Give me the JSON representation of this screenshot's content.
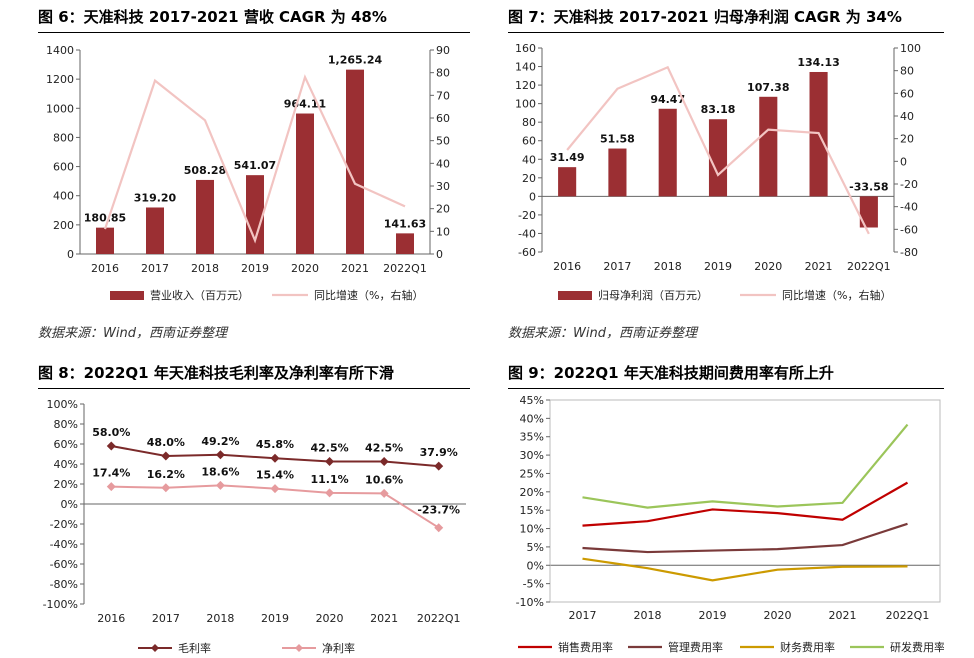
{
  "colors": {
    "bar": "#9b2f33",
    "pink_line": "#f2c4c2",
    "gross": "#7b2a2a",
    "net": "#e69b9e",
    "sales": "#c00000",
    "mgmt": "#7a3a3a",
    "fin": "#cc9a00",
    "rnd": "#9bc55a"
  },
  "source": "数据来源：Wind，西南证券整理",
  "chart_data": [
    {
      "id": "fig6",
      "type": "bar",
      "title": "图 6：天准科技 2017-2021 营收 CAGR 为 48%",
      "categories": [
        "2016",
        "2017",
        "2018",
        "2019",
        "2020",
        "2021",
        "2022Q1"
      ],
      "series": [
        {
          "name": "营业收入（百万元）",
          "type": "bar",
          "axis": "left",
          "values": [
            180.85,
            319.2,
            508.28,
            541.07,
            964.11,
            1265.24,
            141.63
          ],
          "labels": [
            "180.85",
            "319.20",
            "508.28",
            "541.07",
            "964.11",
            "1,265.24",
            "141.63"
          ]
        },
        {
          "name": "同比增速（%，右轴）",
          "type": "line",
          "axis": "right",
          "values": [
            11,
            76.5,
            59,
            6,
            78,
            31,
            21
          ]
        }
      ],
      "left_axis": {
        "min": 0,
        "max": 1400,
        "step": 200,
        "ticks": [
          "0",
          "200",
          "400",
          "600",
          "800",
          "1000",
          "1200",
          "1400"
        ]
      },
      "right_axis": {
        "min": 0,
        "max": 90,
        "step": 10,
        "ticks": [
          "0",
          "10",
          "20",
          "30",
          "40",
          "50",
          "60",
          "70",
          "80",
          "90"
        ]
      }
    },
    {
      "id": "fig7",
      "type": "bar",
      "title": "图 7：天准科技 2017-2021 归母净利润 CAGR 为 34%",
      "categories": [
        "2016",
        "2017",
        "2018",
        "2019",
        "2020",
        "2021",
        "2022Q1"
      ],
      "series": [
        {
          "name": "归母净利润（百万元）",
          "type": "bar",
          "axis": "left",
          "values": [
            31.49,
            51.58,
            94.47,
            83.18,
            107.38,
            134.13,
            -33.58
          ],
          "labels": [
            "31.49",
            "51.58",
            "94.47",
            "83.18",
            "107.38",
            "134.13",
            "-33.58"
          ]
        },
        {
          "name": "同比增速（%，右轴）",
          "type": "line",
          "axis": "right",
          "values": [
            10,
            64,
            83,
            -12,
            28,
            25,
            -64
          ]
        }
      ],
      "left_axis": {
        "min": -60,
        "max": 160,
        "step": 20,
        "ticks": [
          "-60",
          "-40",
          "-20",
          "0",
          "20",
          "40",
          "60",
          "80",
          "100",
          "120",
          "140",
          "160"
        ]
      },
      "right_axis": {
        "min": -80,
        "max": 100,
        "step": 20,
        "ticks": [
          "-80",
          "-60",
          "-40",
          "-20",
          "0",
          "20",
          "40",
          "60",
          "80",
          "100"
        ]
      }
    },
    {
      "id": "fig8",
      "type": "line",
      "title": "图 8：2022Q1 年天准科技毛利率及净利率有所下滑",
      "categories": [
        "2016",
        "2017",
        "2018",
        "2019",
        "2020",
        "2021",
        "2022Q1"
      ],
      "series": [
        {
          "name": "毛利率",
          "values": [
            58.0,
            48.0,
            49.2,
            45.8,
            42.5,
            42.5,
            37.9
          ],
          "labels": [
            "58.0%",
            "48.0%",
            "49.2%",
            "45.8%",
            "42.5%",
            "42.5%",
            "37.9%"
          ]
        },
        {
          "name": "净利率",
          "values": [
            17.4,
            16.2,
            18.6,
            15.4,
            11.1,
            10.6,
            -23.7
          ],
          "labels": [
            "17.4%",
            "16.2%",
            "18.6%",
            "15.4%",
            "11.1%",
            "10.6%",
            "-23.7%"
          ]
        }
      ],
      "y_axis": {
        "min": -100,
        "max": 100,
        "step": 20,
        "ticks": [
          "-100%",
          "-80%",
          "-60%",
          "-40%",
          "-20%",
          "0%",
          "20%",
          "40%",
          "60%",
          "80%",
          "100%"
        ]
      }
    },
    {
      "id": "fig9",
      "type": "line",
      "title": "图 9：2022Q1 年天准科技期间费用率有所上升",
      "categories": [
        "2017",
        "2018",
        "2019",
        "2020",
        "2021",
        "2022Q1"
      ],
      "series": [
        {
          "name": "销售费用率",
          "values": [
            10.8,
            12,
            15.2,
            14.2,
            12.4,
            22.5
          ]
        },
        {
          "name": "管理费用率",
          "values": [
            4.7,
            3.6,
            4,
            4.4,
            5.5,
            11.3
          ]
        },
        {
          "name": "财务费用率",
          "values": [
            1.8,
            -0.8,
            -4.1,
            -1.2,
            -0.4,
            -0.3
          ]
        },
        {
          "name": "研发费用率",
          "values": [
            18.5,
            15.7,
            17.4,
            16,
            17,
            38.3
          ]
        }
      ],
      "y_axis": {
        "min": -10,
        "max": 45,
        "step": 5,
        "ticks": [
          "-10%",
          "-5%",
          "0%",
          "5%",
          "10%",
          "15%",
          "20%",
          "25%",
          "30%",
          "35%",
          "40%",
          "45%"
        ]
      }
    }
  ]
}
